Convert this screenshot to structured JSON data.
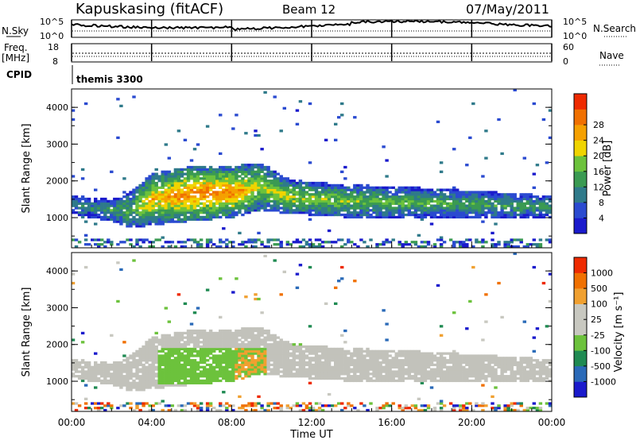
{
  "header": {
    "station": "Kapuskasing (fitACF)",
    "beam": "Beam 12",
    "date": "07/May/2011"
  },
  "top_panels": {
    "nsky_label": "N.Sky",
    "nsky_ticks": [
      "10^5",
      "10^0"
    ],
    "nsearch_label": "N.Search",
    "nsearch_ticks": [
      "10^5",
      "10^0"
    ],
    "freq_label": "Freq.",
    "freq_unit": "[MHz]",
    "freq_ticks": [
      "18",
      "8"
    ],
    "nave_label": "Nave",
    "nave_ticks": [
      "60",
      "0"
    ],
    "cpid_label": "CPID",
    "cpid_value": "themis 3300"
  },
  "colors": {
    "power": [
      "#1a1acc",
      "#2a4ad0",
      "#2f7a8a",
      "#3a9a52",
      "#6cc23c",
      "#f0d400",
      "#f5a000",
      "#f07000",
      "#ee2a00"
    ],
    "velocity": [
      "#1a1acc",
      "#2a6ab8",
      "#1f8a52",
      "#6cc23c",
      "#c8c8c0",
      "#c8c8c0",
      "#f0a030",
      "#f07000",
      "#ee2a00"
    ],
    "gray": "#c2c2bb"
  },
  "chart_data": [
    {
      "type": "heatmap",
      "name": "power",
      "ylabel": "Slant Range [km]",
      "ylim": [
        180,
        4500
      ],
      "yticks": [
        "1000",
        "2000",
        "3000",
        "4000"
      ],
      "colorbar_label": "Power [dB]",
      "colorbar_ticks": [
        "4",
        "8",
        "12",
        "16",
        "20",
        "24",
        "28"
      ],
      "colorbar_range": [
        0,
        32
      ],
      "echo_bands": [
        {
          "time": 0.0,
          "lower_km": 1100,
          "upper_km": 1600,
          "peak_db": 10
        },
        {
          "time": 2.0,
          "lower_km": 900,
          "upper_km": 1500,
          "peak_db": 12
        },
        {
          "time": 3.0,
          "lower_km": 700,
          "upper_km": 1700,
          "peak_db": 14
        },
        {
          "time": 4.0,
          "lower_km": 800,
          "upper_km": 2200,
          "peak_db": 22
        },
        {
          "time": 6.0,
          "lower_km": 900,
          "upper_km": 2400,
          "peak_db": 26
        },
        {
          "time": 8.0,
          "lower_km": 1000,
          "upper_km": 2400,
          "peak_db": 26
        },
        {
          "time": 9.5,
          "lower_km": 1200,
          "upper_km": 2500,
          "peak_db": 18
        },
        {
          "time": 11.0,
          "lower_km": 1100,
          "upper_km": 2000,
          "peak_db": 18
        },
        {
          "time": 14.0,
          "lower_km": 1000,
          "upper_km": 1900,
          "peak_db": 16
        },
        {
          "time": 18.0,
          "lower_km": 1000,
          "upper_km": 1800,
          "peak_db": 14
        },
        {
          "time": 21.0,
          "lower_km": 1000,
          "upper_km": 1700,
          "peak_db": 13
        },
        {
          "time": 24.0,
          "lower_km": 1000,
          "upper_km": 1600,
          "peak_db": 12
        }
      ]
    },
    {
      "type": "heatmap",
      "name": "velocity",
      "ylabel": "Slant Range [km]",
      "ylim": [
        180,
        4500
      ],
      "yticks": [
        "1000",
        "2000",
        "3000",
        "4000"
      ],
      "colorbar_label": "Velocity [m s⁻¹]",
      "colorbar_ticks": [
        "1000",
        "500",
        "100",
        "25",
        "-25",
        "-100",
        "-500",
        "-1000"
      ],
      "xlabel": "Time UT",
      "xticks": [
        "00:00",
        "04:00",
        "08:00",
        "12:00",
        "16:00",
        "20:00",
        "00:00"
      ],
      "xlim": [
        0,
        24
      ]
    }
  ]
}
